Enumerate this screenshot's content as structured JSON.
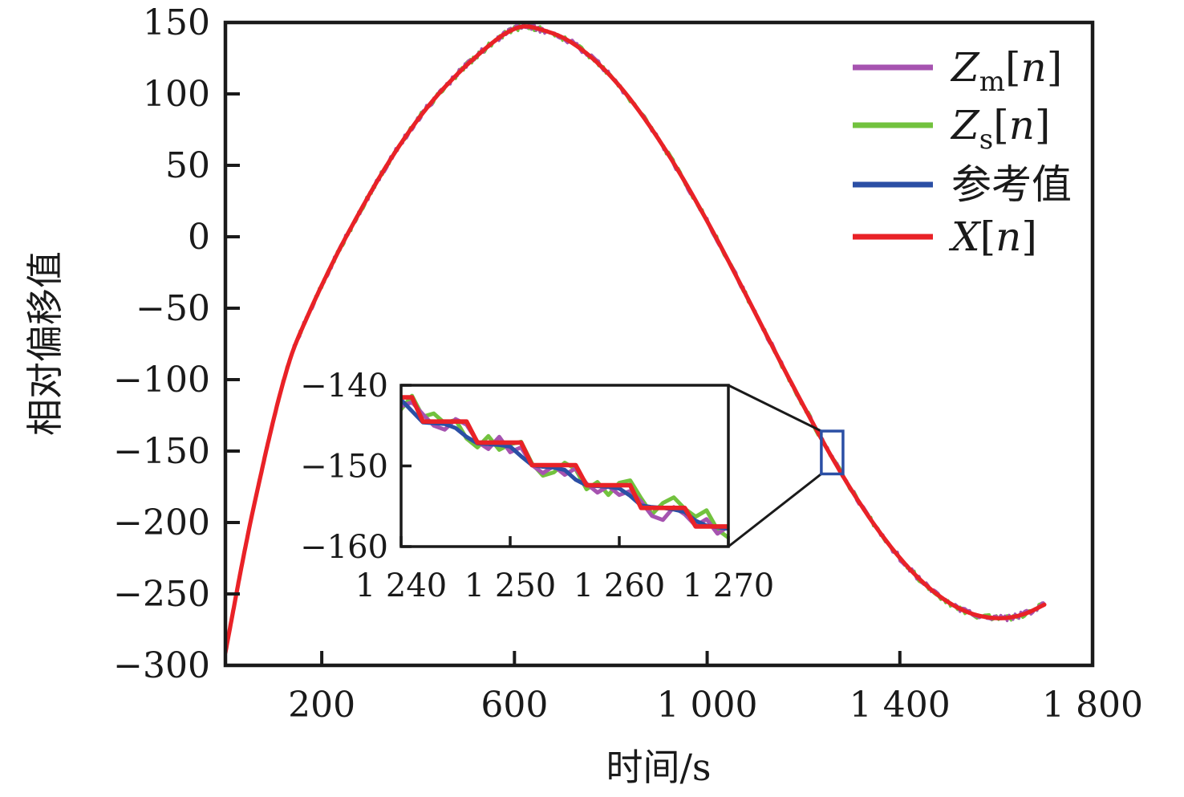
{
  "chart_data": {
    "type": "line",
    "main": {
      "xlabel": "时间/s",
      "ylabel": "相对偏移值",
      "xlim": [
        0,
        1800
      ],
      "ylim": [
        -300,
        150
      ],
      "grid": false,
      "xticks": [
        {
          "v": 200,
          "label": "200"
        },
        {
          "v": 600,
          "label": "600"
        },
        {
          "v": 1000,
          "label": "1 000"
        },
        {
          "v": 1400,
          "label": "1 400"
        },
        {
          "v": 1800,
          "label": "1 800"
        }
      ],
      "yticks": [
        {
          "v": 150,
          "label": "150"
        },
        {
          "v": 100,
          "label": "100"
        },
        {
          "v": 50,
          "label": "50"
        },
        {
          "v": 0,
          "label": "0"
        },
        {
          "v": -50,
          "label": "−50"
        },
        {
          "v": -100,
          "label": "−100"
        },
        {
          "v": -150,
          "label": "−150"
        },
        {
          "v": -200,
          "label": "−200"
        },
        {
          "v": -250,
          "label": "−250"
        },
        {
          "v": -300,
          "label": "−300"
        }
      ],
      "reference_anchors": {
        "x": [
          0,
          15,
          30,
          50,
          70,
          90,
          115,
          140,
          170,
          200,
          235,
          270,
          310,
          350,
          395,
          440,
          485,
          520,
          555,
          585,
          615,
          645,
          705,
          765,
          825,
          885,
          945,
          1005,
          1065,
          1125,
          1185,
          1245,
          1305,
          1365,
          1425,
          1485,
          1545,
          1605,
          1655,
          1700
        ],
        "y": [
          -291,
          -264,
          -237,
          -203,
          -172,
          -142,
          -108,
          -80,
          -56,
          -34,
          -10,
          12,
          36,
          58,
          80,
          99,
          115,
          126,
          136,
          143,
          147,
          146,
          138.6,
          124,
          102.7,
          75.4,
          43.5,
          7.8,
          -30.5,
          -69.9,
          -108.8,
          -146.1,
          -180.2,
          -209.9,
          -234.2,
          -252.2,
          -263.3,
          -267,
          -264.4,
          -257.5
        ]
      },
      "series": [
        {
          "name": "Zm[n]",
          "color": "#A653B0",
          "noise_amplitude": 2.2,
          "seed": 11
        },
        {
          "name": "Zs[n]",
          "color": "#72C23E",
          "noise_amplitude": 2.2,
          "seed": 3
        },
        {
          "name": "参考值",
          "color": "#2B4FA5",
          "noise_amplitude": 0,
          "seed": 0
        },
        {
          "name": "X[n]",
          "color": "#E92227",
          "noise_amplitude": 0,
          "seed": 0
        }
      ],
      "zoom_region": {
        "x": [
          1237,
          1282
        ],
        "y": [
          -166,
          -136
        ],
        "color": "#2B4FA5"
      }
    },
    "inset": {
      "xlim": [
        1240,
        1270
      ],
      "ylim": [
        -160,
        -140
      ],
      "x_start": 1240,
      "x_step": 1,
      "xticks": [
        {
          "v": 1240,
          "label": "1 240"
        },
        {
          "v": 1250,
          "label": "1 250"
        },
        {
          "v": 1260,
          "label": "1 260"
        },
        {
          "v": 1270,
          "label": "1 270"
        }
      ],
      "yticks": [
        {
          "v": -140,
          "label": "−140"
        },
        {
          "v": -150,
          "label": "−150"
        },
        {
          "v": -160,
          "label": "−160"
        }
      ],
      "series": [
        {
          "name": "Zm[n]",
          "color": "#A653B0",
          "values": [
            -142.6,
            -142.1,
            -143.6,
            -145.0,
            -145.5,
            -144.2,
            -144.9,
            -147.0,
            -147.9,
            -146.4,
            -148.3,
            -147.7,
            -149.9,
            -150.9,
            -150.0,
            -151.1,
            -150.3,
            -152.2,
            -153.3,
            -152.5,
            -153.6,
            -153.1,
            -154.4,
            -156.2,
            -156.7,
            -155.1,
            -156.0,
            -157.4,
            -156.6,
            -158.4,
            -157.5
          ]
        },
        {
          "name": "Zs[n]",
          "color": "#72C23E",
          "values": [
            -143.0,
            -141.3,
            -143.9,
            -143.5,
            -144.7,
            -144.3,
            -146.6,
            -147.7,
            -146.3,
            -148.0,
            -147.3,
            -147.0,
            -149.7,
            -151.2,
            -150.8,
            -149.6,
            -150.4,
            -152.9,
            -152.0,
            -153.6,
            -152.1,
            -151.8,
            -154.0,
            -156.0,
            -154.6,
            -153.9,
            -155.3,
            -156.3,
            -155.5,
            -157.9,
            -158.9
          ]
        },
        {
          "name": "参考值",
          "color": "#2B4FA5",
          "values": [
            -141.8,
            -143.2,
            -144.6,
            -144.7,
            -144.8,
            -145.3,
            -146.4,
            -147.2,
            -147.3,
            -147.4,
            -147.6,
            -148.8,
            -149.9,
            -150.1,
            -150.2,
            -150.5,
            -151.7,
            -152.4,
            -152.5,
            -152.6,
            -152.8,
            -153.7,
            -154.9,
            -155.1,
            -155.2,
            -155.4,
            -155.7,
            -156.8,
            -157.4,
            -157.6,
            -157.8
          ]
        },
        {
          "name": "X[n]",
          "color": "#E92227",
          "values": [
            -141.5,
            -141.5,
            -144.5,
            -144.5,
            -144.5,
            -144.5,
            -144.5,
            -147.1,
            -147.1,
            -147.1,
            -147.1,
            -147.1,
            -149.9,
            -149.9,
            -149.9,
            -149.9,
            -149.9,
            -152.4,
            -152.4,
            -152.4,
            -152.4,
            -152.4,
            -155.2,
            -155.2,
            -155.2,
            -155.2,
            -155.2,
            -157.5,
            -157.5,
            -157.5,
            -157.5
          ]
        }
      ]
    },
    "legend": {
      "items": [
        {
          "base": "Z",
          "sub": "m",
          "bracket_open": "[",
          "variable": "n",
          "bracket_close": "]",
          "color": "#A653B0"
        },
        {
          "base": "Z",
          "sub": "s",
          "bracket_open": "[",
          "variable": "n",
          "bracket_close": "]",
          "color": "#72C23E"
        },
        {
          "base": "参考值",
          "sub": "",
          "bracket_open": "",
          "variable": "",
          "bracket_close": "",
          "color": "#2B4FA5"
        },
        {
          "base": "X",
          "sub": "",
          "bracket_open": "[",
          "variable": "n",
          "bracket_close": "]",
          "color": "#E92227"
        }
      ]
    },
    "colors": {
      "axis": "#1A1A1A",
      "background": "#FFFFFF",
      "callout": "#1A1A1A"
    }
  }
}
